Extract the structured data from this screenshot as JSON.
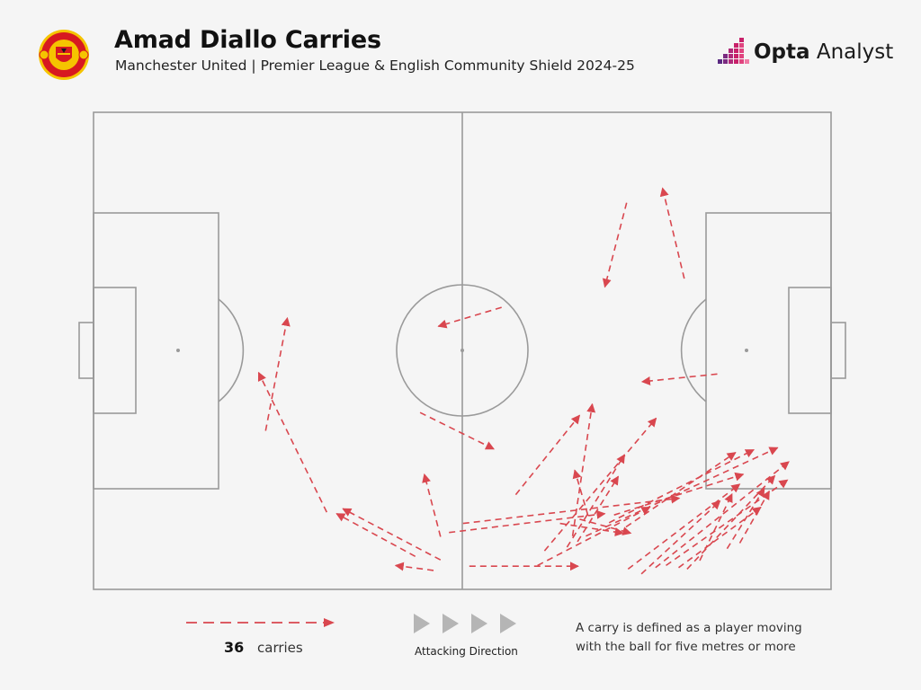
{
  "header": {
    "title": "Amad Diallo Carries",
    "subtitle": "Manchester United | Premier League & English Community Shield 2024-25",
    "brand": {
      "part1": "Opta",
      "part2": " Analyst"
    },
    "crest_text_top": "MANCHESTER",
    "crest_text_bottom": "UNITED"
  },
  "legend": {
    "count": "36",
    "count_label": "carries",
    "direction_label": "Attacking Direction",
    "definition": "A carry is defined as a player moving with the ball for five metres or more"
  },
  "colors": {
    "carry": "#d9474f",
    "pitch_lines": "#9a9a9a",
    "background": "#f5f5f5",
    "arrows_grey": "#b5b5b5",
    "crest_red": "#d71920",
    "crest_gold": "#f5c400",
    "brand_pink": "#c8216a",
    "brand_purple": "#5a2a82"
  },
  "chart_data": {
    "type": "pitch-arrows",
    "pitch": {
      "length": 105,
      "width": 68
    },
    "attacking_direction": "left-to-right",
    "units": "metres from own goal line (x) and from top touchline (y)",
    "carries": [
      {
        "x1": 75.9,
        "y1": 12.9,
        "x2": 72.8,
        "y2": 24.9
      },
      {
        "x1": 84.1,
        "y1": 23.7,
        "x2": 81.0,
        "y2": 10.8
      },
      {
        "x1": 58.1,
        "y1": 27.8,
        "x2": 49.1,
        "y2": 30.5
      },
      {
        "x1": 88.8,
        "y1": 37.3,
        "x2": 78.1,
        "y2": 38.4
      },
      {
        "x1": 46.5,
        "y1": 42.8,
        "x2": 57.0,
        "y2": 48.0
      },
      {
        "x1": 24.5,
        "y1": 45.4,
        "x2": 27.6,
        "y2": 29.3
      },
      {
        "x1": 33.2,
        "y1": 57.0,
        "x2": 23.5,
        "y2": 37.1
      },
      {
        "x1": 45.8,
        "y1": 63.3,
        "x2": 34.6,
        "y2": 57.2
      },
      {
        "x1": 49.4,
        "y1": 63.8,
        "x2": 35.5,
        "y2": 56.5
      },
      {
        "x1": 48.4,
        "y1": 65.3,
        "x2": 43.0,
        "y2": 64.6
      },
      {
        "x1": 49.4,
        "y1": 60.5,
        "x2": 47.1,
        "y2": 51.6
      },
      {
        "x1": 60.1,
        "y1": 54.5,
        "x2": 69.2,
        "y2": 43.2
      },
      {
        "x1": 68.2,
        "y1": 60.4,
        "x2": 71.0,
        "y2": 41.6
      },
      {
        "x1": 64.2,
        "y1": 62.5,
        "x2": 80.1,
        "y2": 43.6
      },
      {
        "x1": 70.4,
        "y1": 57.5,
        "x2": 68.5,
        "y2": 51.0
      },
      {
        "x1": 67.4,
        "y1": 62.0,
        "x2": 75.6,
        "y2": 48.8
      },
      {
        "x1": 68.9,
        "y1": 61.2,
        "x2": 74.7,
        "y2": 51.9
      },
      {
        "x1": 53.5,
        "y1": 64.7,
        "x2": 69.0,
        "y2": 64.7
      },
      {
        "x1": 63.2,
        "y1": 64.6,
        "x2": 79.2,
        "y2": 56.3
      },
      {
        "x1": 66.4,
        "y1": 58.6,
        "x2": 75.4,
        "y2": 60.0
      },
      {
        "x1": 69.2,
        "y1": 58.0,
        "x2": 76.5,
        "y2": 60.0
      },
      {
        "x1": 50.6,
        "y1": 59.9,
        "x2": 72.8,
        "y2": 57.2
      },
      {
        "x1": 52.6,
        "y1": 58.6,
        "x2": 83.4,
        "y2": 55.0
      },
      {
        "x1": 74.1,
        "y1": 57.4,
        "x2": 92.5,
        "y2": 51.6
      },
      {
        "x1": 73.4,
        "y1": 58.5,
        "x2": 94.0,
        "y2": 48.1
      },
      {
        "x1": 75.8,
        "y1": 59.1,
        "x2": 91.4,
        "y2": 48.5
      },
      {
        "x1": 70.1,
        "y1": 60.4,
        "x2": 97.4,
        "y2": 47.8
      },
      {
        "x1": 76.1,
        "y1": 65.1,
        "x2": 92.0,
        "y2": 53.0
      },
      {
        "x1": 78.0,
        "y1": 65.8,
        "x2": 89.2,
        "y2": 55.4
      },
      {
        "x1": 80.0,
        "y1": 64.9,
        "x2": 99.0,
        "y2": 49.8
      },
      {
        "x1": 81.5,
        "y1": 64.6,
        "x2": 98.8,
        "y2": 52.4
      },
      {
        "x1": 83.3,
        "y1": 64.9,
        "x2": 95.0,
        "y2": 56.3
      },
      {
        "x1": 84.5,
        "y1": 65.1,
        "x2": 97.0,
        "y2": 51.8
      },
      {
        "x1": 86.3,
        "y1": 63.9,
        "x2": 90.9,
        "y2": 54.4
      },
      {
        "x1": 90.2,
        "y1": 62.2,
        "x2": 95.5,
        "y2": 53.6
      },
      {
        "x1": 92.0,
        "y1": 61.4,
        "x2": 96.2,
        "y2": 54.0
      }
    ]
  }
}
